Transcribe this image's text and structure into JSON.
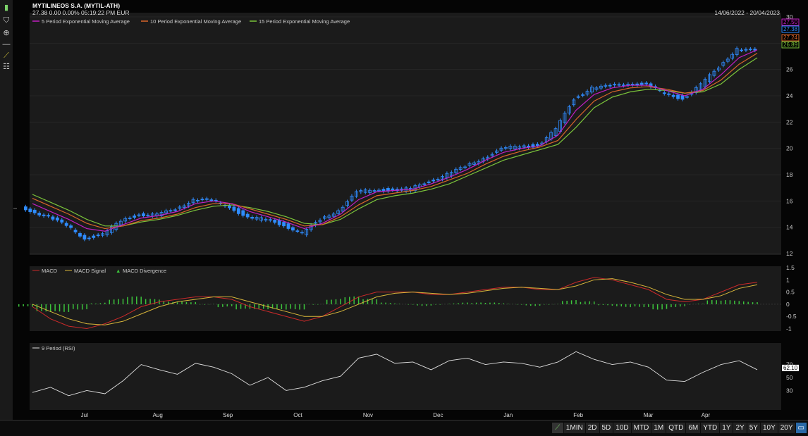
{
  "header": {
    "title": "MYTILINEOS S.A. (MYTIL-ATH)",
    "quote": "27.38   0.00   0.00%   05:19:22 PM   EUR",
    "date_range": "14/06/2022 - 20/04/2023"
  },
  "toolbar": {
    "icons": [
      "bar-chart-icon",
      "shield-icon",
      "crosshair-icon",
      "line-tool-icon",
      "trend-line-icon",
      "grid-list-icon"
    ]
  },
  "colors": {
    "background": "#000000",
    "panel": "#1b1b1b",
    "up_candle": "#2f8cff",
    "down_candle": "#2f8cff",
    "ema5": "#c21fc2",
    "ema10": "#d9652a",
    "ema15": "#7bc43a",
    "macd": "#cc2a2a",
    "macd_signal": "#d8b63a",
    "macd_divergence": "#3cc43c",
    "rsi": "#e0e0e0"
  },
  "chart_data": [
    {
      "type": "candlestick",
      "legend": [
        "5 Period Exponential Moving Average",
        "10 Period Exponential Moving Average",
        "15 Period Exponential Moving Average"
      ],
      "x_tick_labels": [
        "Jul",
        "Aug",
        "Sep",
        "Oct",
        "Nov",
        "Dec",
        "Jan",
        "Feb",
        "Mar",
        "Apr"
      ],
      "y_ticks": [
        "30",
        "28",
        "26",
        "24",
        "22",
        "20",
        "18",
        "16",
        "14",
        "12"
      ],
      "ylim": [
        12,
        30
      ],
      "last_value_labels": [
        "27.50",
        "27.38",
        "27.24",
        "26.89"
      ],
      "close_weekly": [
        15.3,
        14.8,
        14.1,
        13.2,
        13.4,
        14.5,
        15.0,
        14.9,
        15.4,
        16.1,
        16.0,
        15.6,
        14.7,
        14.6,
        14.2,
        13.5,
        14.6,
        15.3,
        16.6,
        16.9,
        16.8,
        16.9,
        17.5,
        18.0,
        18.6,
        19.3,
        19.9,
        20.2,
        20.2,
        21.4,
        23.8,
        24.6,
        24.7,
        25.0,
        24.8,
        24.2,
        23.8,
        24.8,
        26.2,
        27.6,
        27.38
      ],
      "ema5_weekly": [
        15.8,
        15.2,
        14.6,
        13.9,
        13.7,
        14.2,
        14.7,
        14.9,
        15.2,
        15.8,
        16.0,
        15.8,
        15.2,
        14.8,
        14.4,
        13.9,
        14.3,
        15.0,
        16.1,
        16.7,
        16.8,
        16.9,
        17.3,
        17.8,
        18.4,
        19.1,
        19.7,
        20.0,
        20.2,
        21.0,
        22.9,
        24.1,
        24.6,
        24.8,
        24.8,
        24.4,
        24.0,
        24.5,
        25.6,
        26.9,
        27.5
      ],
      "ema10_weekly": [
        16.2,
        15.6,
        15.0,
        14.3,
        13.9,
        14.1,
        14.5,
        14.7,
        15.0,
        15.5,
        15.8,
        15.8,
        15.4,
        15.0,
        14.6,
        14.1,
        14.2,
        14.8,
        15.7,
        16.4,
        16.6,
        16.8,
        17.1,
        17.6,
        18.1,
        18.8,
        19.4,
        19.8,
        20.1,
        20.6,
        22.2,
        23.6,
        24.3,
        24.6,
        24.7,
        24.5,
        24.2,
        24.4,
        25.2,
        26.4,
        27.24
      ],
      "ema15_weekly": [
        16.5,
        15.9,
        15.3,
        14.6,
        14.1,
        14.1,
        14.4,
        14.6,
        14.9,
        15.3,
        15.6,
        15.7,
        15.5,
        15.2,
        14.8,
        14.3,
        14.2,
        14.6,
        15.4,
        16.1,
        16.4,
        16.6,
        16.9,
        17.3,
        17.9,
        18.5,
        19.1,
        19.5,
        19.9,
        20.3,
        21.6,
        23.1,
        23.9,
        24.3,
        24.5,
        24.4,
        24.2,
        24.3,
        24.9,
        26.0,
        26.89
      ]
    },
    {
      "type": "line",
      "legend": [
        "MACD",
        "MACD Signal",
        "MACD Divergence"
      ],
      "y_ticks": [
        "1.5",
        "1",
        "0.5",
        "0",
        "-0.5",
        "-1"
      ],
      "ylim": [
        -1.1,
        1.5
      ],
      "macd_weekly": [
        -0.1,
        -0.6,
        -0.9,
        -1.0,
        -0.8,
        -0.5,
        -0.1,
        0.1,
        0.2,
        0.3,
        0.3,
        0.2,
        -0.1,
        -0.3,
        -0.5,
        -0.7,
        -0.5,
        -0.1,
        0.3,
        0.5,
        0.5,
        0.5,
        0.4,
        0.4,
        0.5,
        0.6,
        0.7,
        0.7,
        0.6,
        0.6,
        0.9,
        1.1,
        1.0,
        0.8,
        0.6,
        0.2,
        0.1,
        0.2,
        0.5,
        0.8,
        0.9
      ],
      "signal_weekly": [
        0.0,
        -0.3,
        -0.6,
        -0.8,
        -0.85,
        -0.7,
        -0.4,
        -0.1,
        0.1,
        0.2,
        0.3,
        0.3,
        0.1,
        -0.1,
        -0.3,
        -0.5,
        -0.5,
        -0.3,
        0.0,
        0.3,
        0.45,
        0.5,
        0.45,
        0.4,
        0.45,
        0.55,
        0.65,
        0.7,
        0.65,
        0.6,
        0.75,
        1.0,
        1.05,
        0.9,
        0.7,
        0.4,
        0.2,
        0.2,
        0.35,
        0.65,
        0.8
      ]
    },
    {
      "type": "line",
      "legend": [
        "9 Period (RSI)"
      ],
      "y_ticks": [
        "70",
        "50",
        "30"
      ],
      "ylim": [
        0,
        100
      ],
      "last_value_label": "62.10",
      "rsi_weekly": [
        27,
        35,
        22,
        30,
        25,
        45,
        70,
        62,
        55,
        72,
        66,
        56,
        38,
        50,
        30,
        35,
        45,
        52,
        80,
        86,
        72,
        74,
        62,
        76,
        80,
        70,
        74,
        72,
        66,
        74,
        90,
        78,
        70,
        74,
        66,
        46,
        44,
        58,
        70,
        76,
        62
      ]
    }
  ],
  "range_buttons": [
    "1MIN",
    "2D",
    "5D",
    "10D",
    "MTD",
    "1M",
    "QTD",
    "6M",
    "YTD",
    "1Y",
    "2Y",
    "5Y",
    "10Y",
    "20Y"
  ],
  "range_selected": "ALL"
}
